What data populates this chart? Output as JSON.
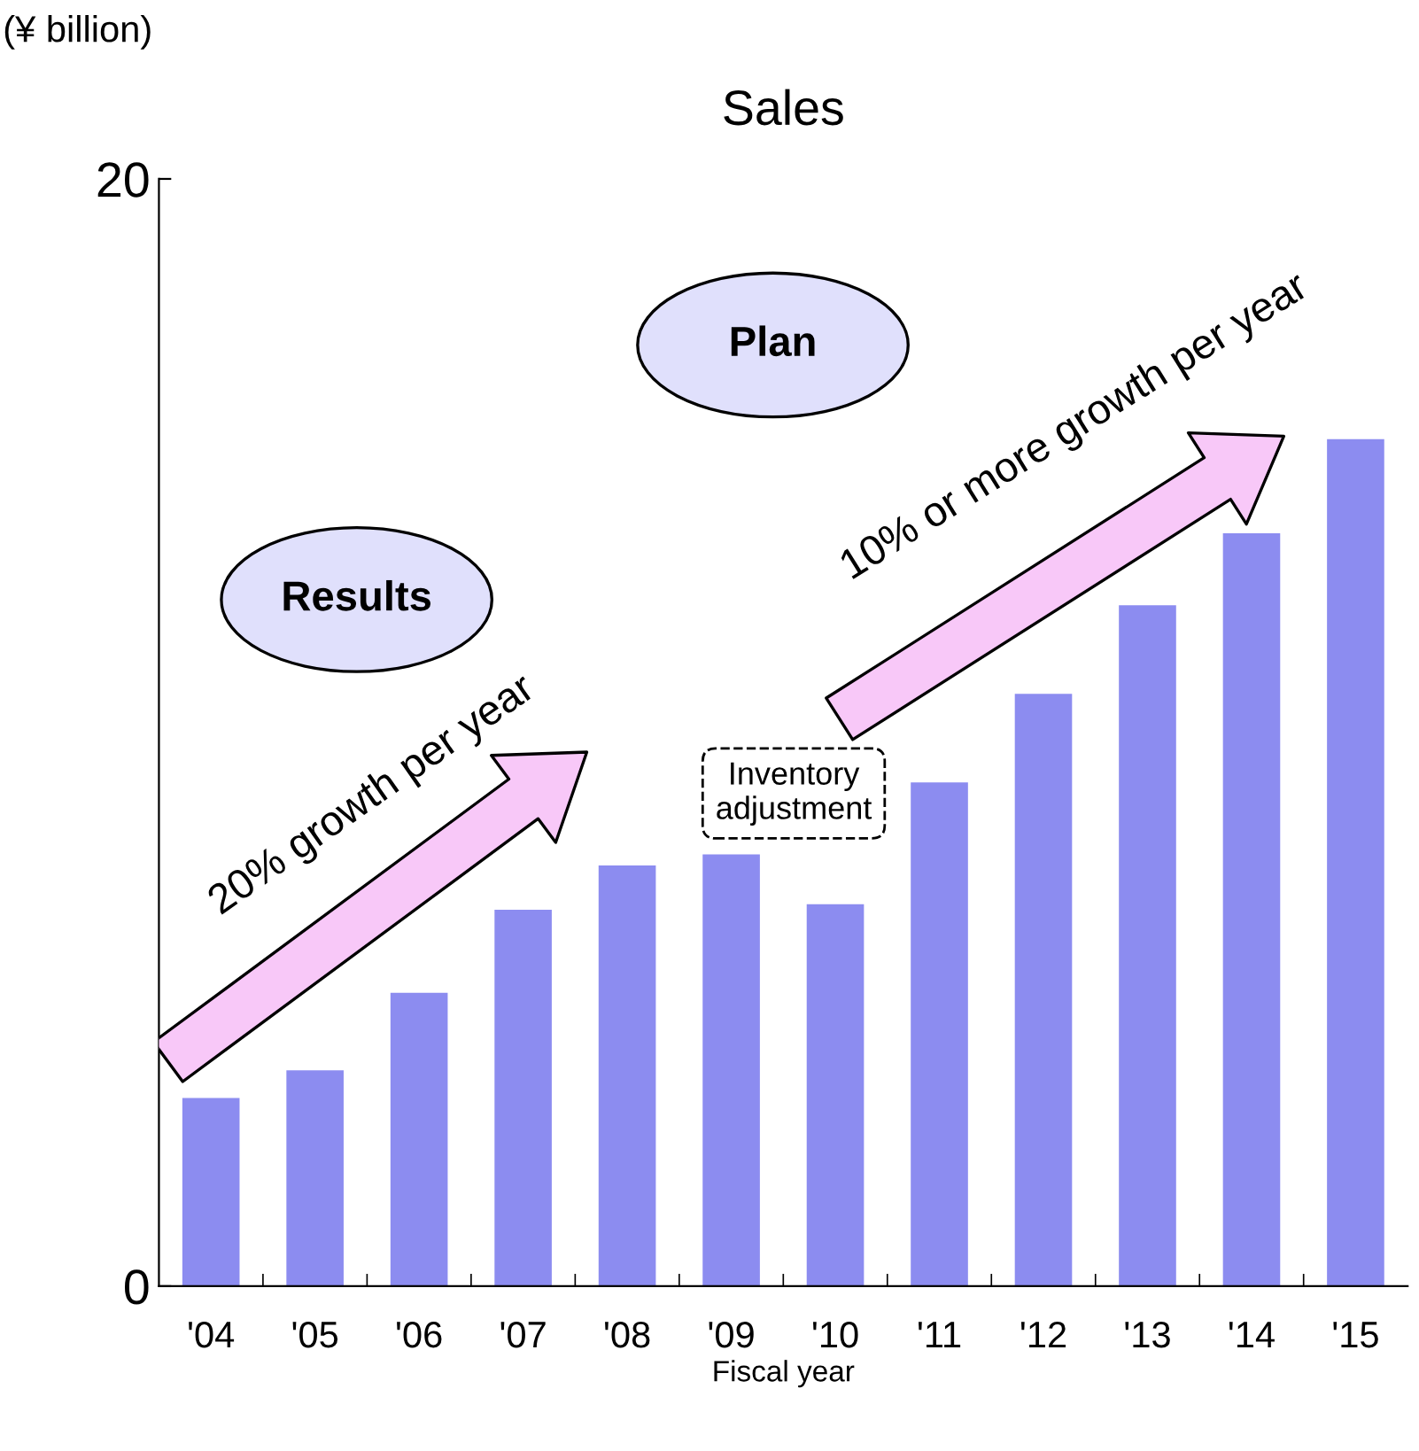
{
  "chart_data": {
    "type": "bar",
    "title": "Sales",
    "ylabel": "(¥ billion)",
    "xlabel": "Fiscal year",
    "categories": [
      "'04",
      "'05",
      "'06",
      "'07",
      "'08",
      "'09",
      "'10",
      "'11",
      "'12",
      "'13",
      "'14",
      "'15"
    ],
    "values": [
      3.4,
      3.9,
      5.3,
      6.8,
      7.6,
      7.8,
      6.9,
      9.1,
      10.7,
      12.3,
      13.6,
      15.3
    ],
    "color": "#8c8cf0",
    "ylim": [
      0,
      20
    ],
    "yticks": [
      0,
      20
    ],
    "annotations": [
      "Results",
      "Plan",
      "20% growth per year",
      "10% or more growth per year",
      "Inventory adjustment"
    ]
  }
}
